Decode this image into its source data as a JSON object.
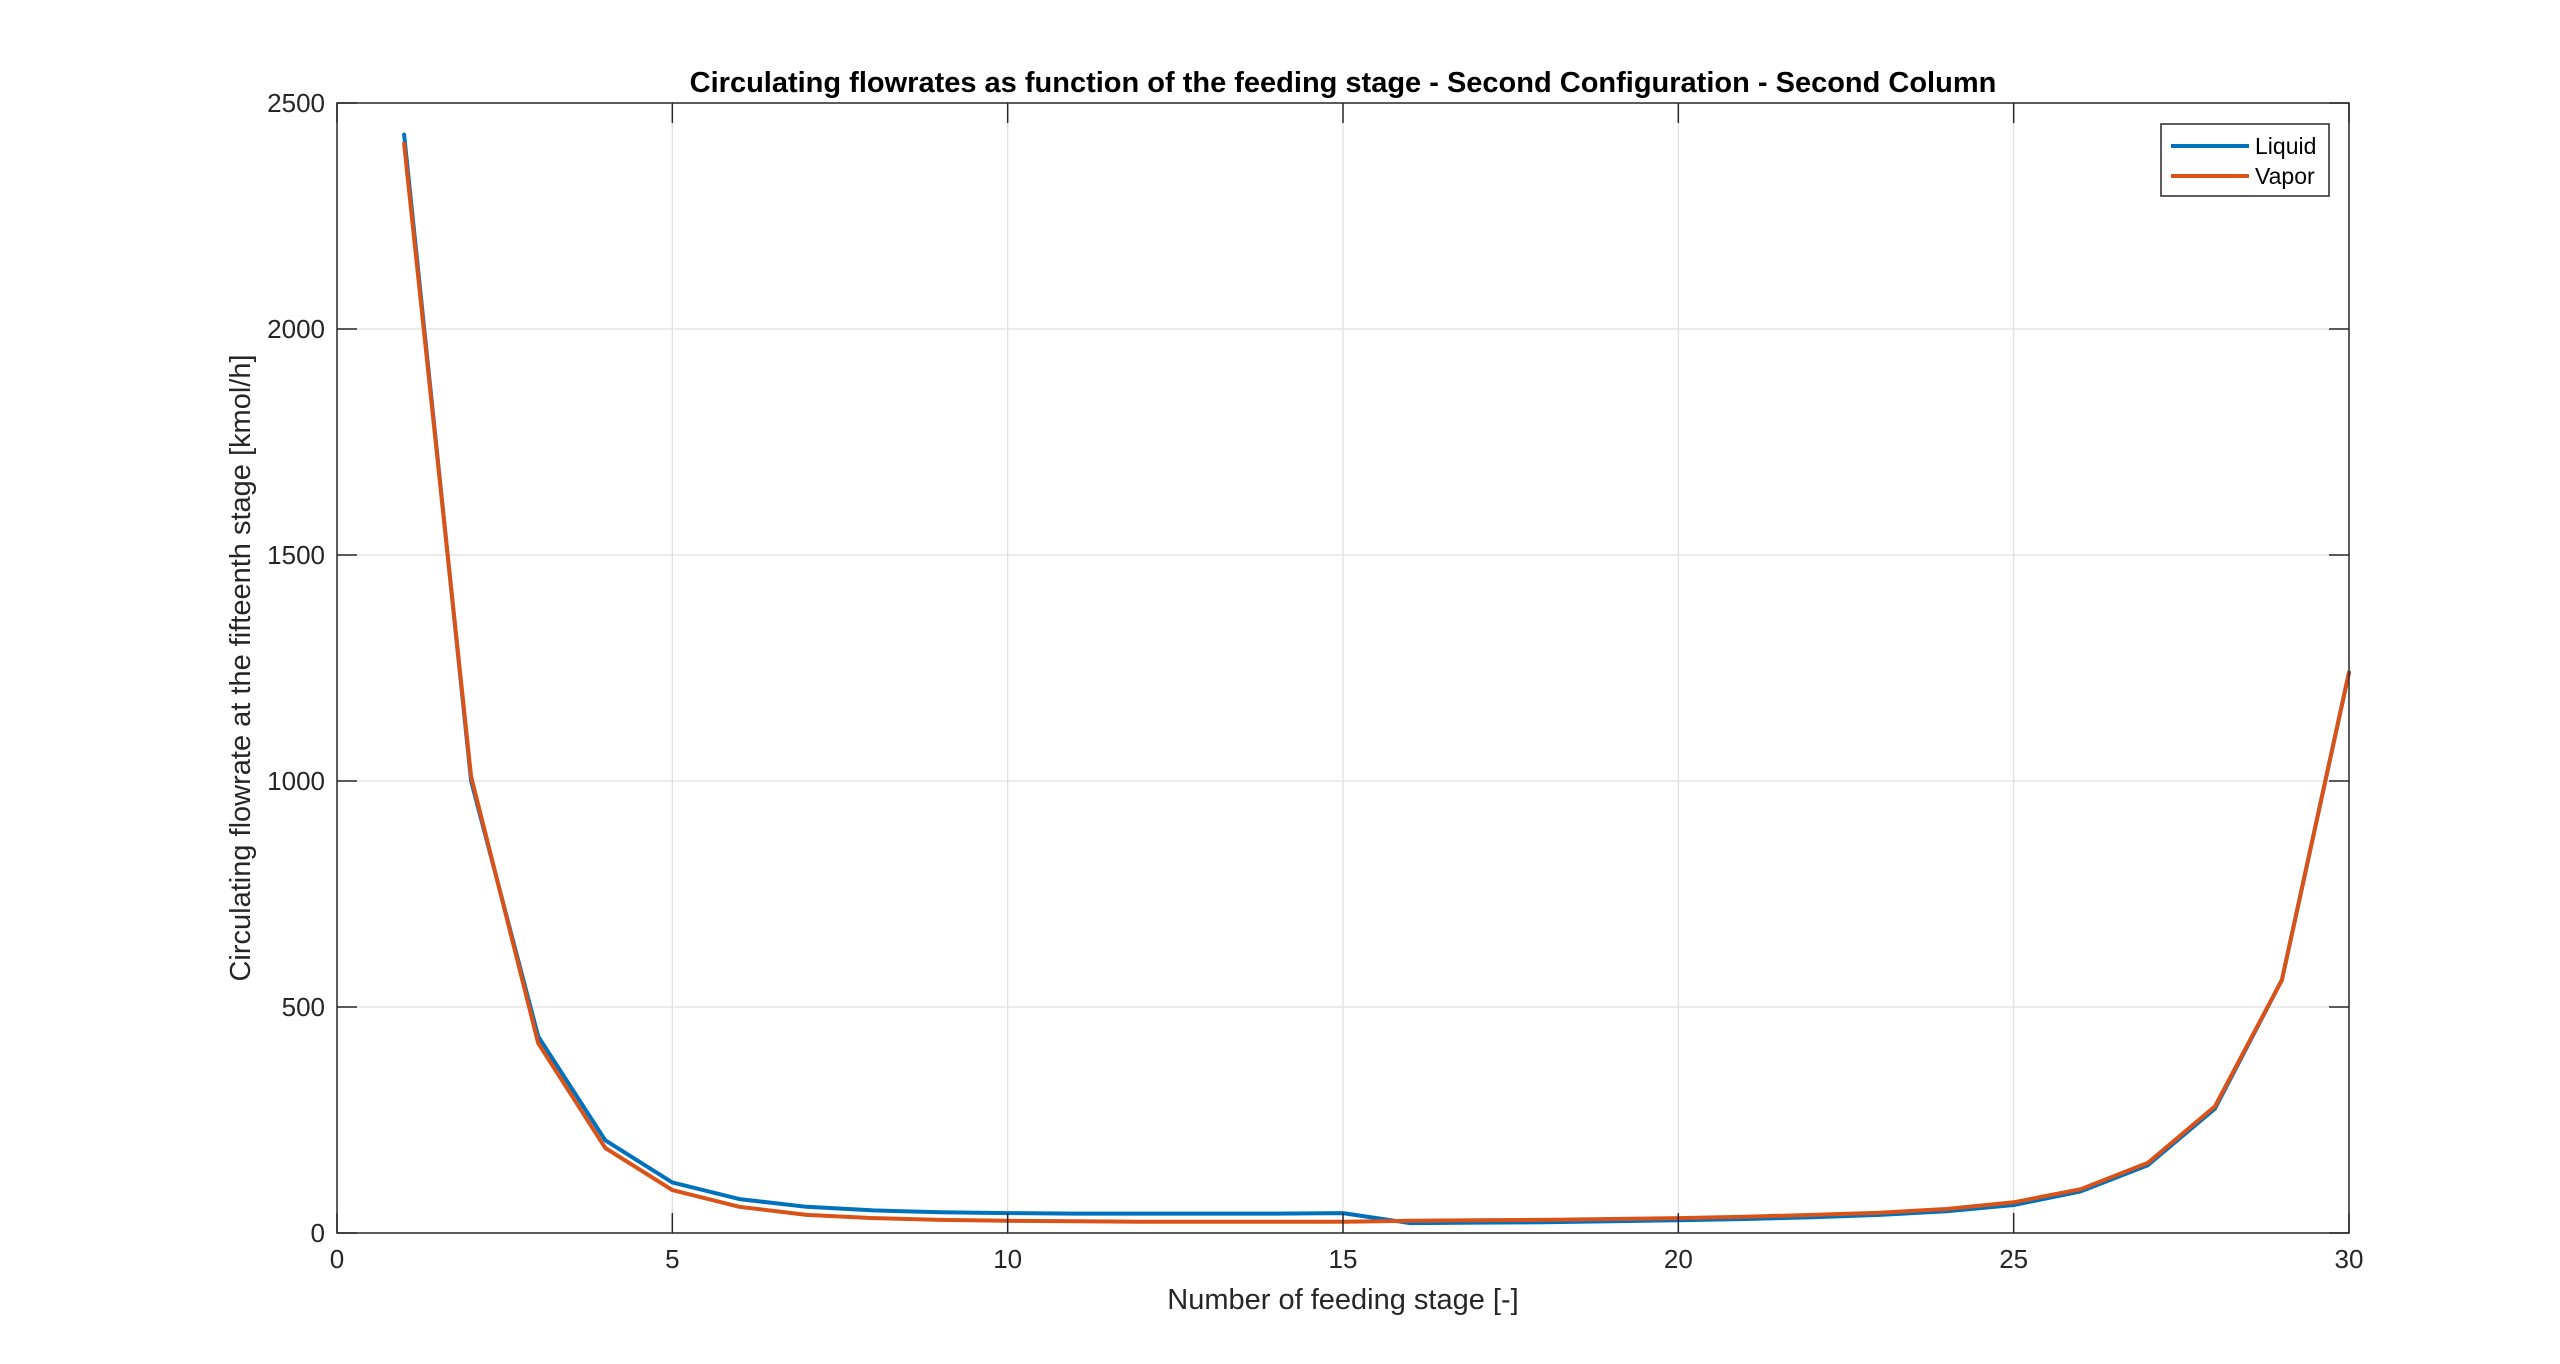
{
  "chart_data": {
    "type": "line",
    "title": "Circulating flowrates as function of the feeding stage - Second Configuration - Second Column",
    "xlabel": "Number of feeding stage [-]",
    "ylabel": "Circulating flowrate at the fifteenth stage [kmol/h]",
    "xlim": [
      0,
      30
    ],
    "ylim": [
      0,
      2500
    ],
    "xticks": [
      0,
      5,
      10,
      15,
      20,
      25,
      30
    ],
    "yticks": [
      0,
      500,
      1000,
      1500,
      2000,
      2500
    ],
    "xtick_labels": [
      "0",
      "5",
      "10",
      "15",
      "20",
      "25",
      "30"
    ],
    "ytick_labels": [
      "0",
      "500",
      "1000",
      "1500",
      "2000",
      "2500"
    ],
    "grid": true,
    "legend_position": "top-right",
    "x": [
      1,
      2,
      3,
      4,
      5,
      6,
      7,
      8,
      9,
      10,
      11,
      12,
      13,
      14,
      15,
      16,
      17,
      18,
      19,
      20,
      21,
      22,
      23,
      24,
      25,
      26,
      27,
      28,
      29,
      30
    ],
    "series": [
      {
        "name": "Liquid",
        "color": "#0072BD",
        "values": [
          2430,
          1000,
          435,
          205,
          112,
          75,
          58,
          50,
          46,
          44,
          43,
          43,
          43,
          43,
          44,
          22,
          23,
          24,
          26,
          28,
          31,
          35,
          40,
          48,
          62,
          92,
          150,
          275,
          560,
          1240
        ]
      },
      {
        "name": "Vapor",
        "color": "#D95319",
        "values": [
          2410,
          1010,
          420,
          188,
          95,
          58,
          40,
          33,
          29,
          27,
          26,
          25,
          25,
          25,
          25,
          27,
          28,
          29,
          31,
          33,
          36,
          40,
          45,
          53,
          68,
          97,
          155,
          280,
          560,
          1240
        ]
      }
    ]
  }
}
